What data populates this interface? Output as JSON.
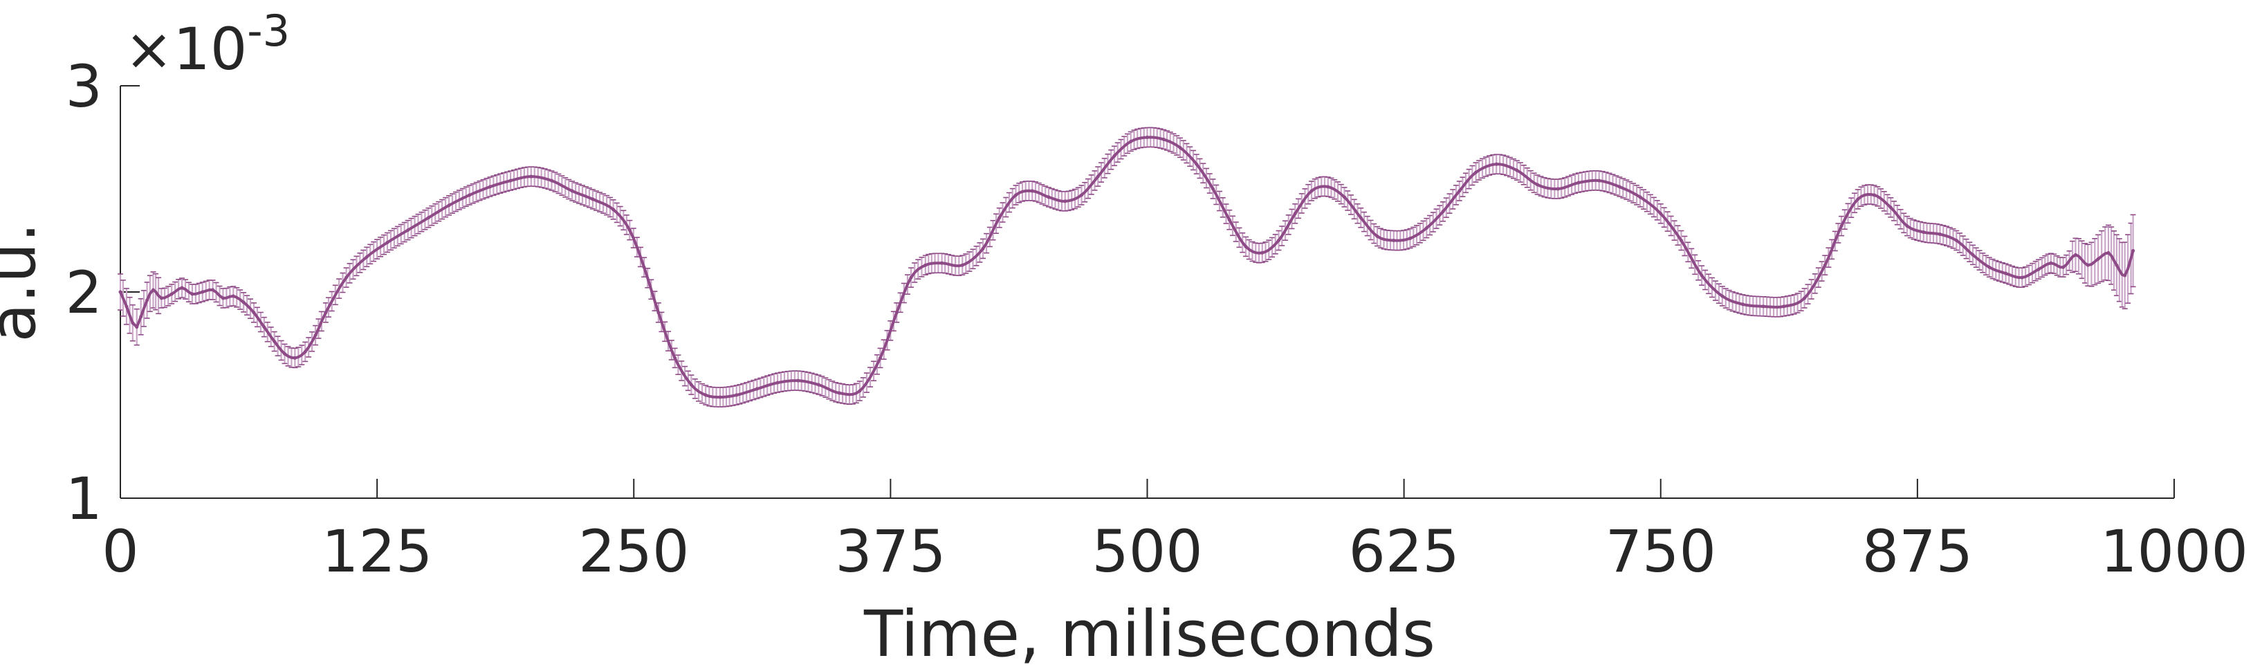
{
  "chart_data": {
    "type": "line",
    "xlabel": "Time, miliseconds",
    "ylabel": "a.u.",
    "y_exponent": "×10",
    "y_exponent_power": "-3",
    "xlim": [
      0,
      1000
    ],
    "ylim": [
      0.001,
      0.003
    ],
    "x_ticks": [
      0,
      125,
      250,
      375,
      500,
      625,
      750,
      875,
      1000
    ],
    "x_tick_labels": [
      "0",
      "125",
      "250",
      "375",
      "500",
      "625",
      "750",
      "875",
      "1000"
    ],
    "y_ticks": [
      0.001,
      0.002,
      0.003
    ],
    "y_tick_labels": [
      "1",
      "2",
      "3"
    ],
    "grid": false,
    "error_bars": true,
    "series_color": "#8e4a86",
    "band_color": "#c9a6c8",
    "series": [
      {
        "x": [
          0,
          3,
          6,
          8,
          10,
          13,
          16,
          20,
          25,
          30,
          35,
          40,
          45,
          50,
          55,
          60,
          65,
          70,
          75,
          80,
          85,
          90,
          95,
          100,
          110,
          120,
          130,
          140,
          150,
          160,
          170,
          180,
          190,
          200,
          210,
          220,
          230,
          240,
          248,
          255,
          262,
          270,
          278,
          285,
          292,
          300,
          310,
          320,
          330,
          340,
          350,
          360,
          370,
          378,
          385,
          392,
          400,
          410,
          420,
          428,
          436,
          444,
          452,
          460,
          468,
          476,
          484,
          492,
          500,
          508,
          516,
          524,
          532,
          540,
          548,
          556,
          564,
          572,
          580,
          588,
          596,
          604,
          612,
          620,
          628,
          636,
          644,
          652,
          660,
          670,
          680,
          690,
          700,
          710,
          720,
          730,
          740,
          750,
          760,
          770,
          780,
          790,
          800,
          810,
          820,
          830,
          838,
          846,
          854,
          862,
          870,
          878,
          886,
          894,
          902,
          910,
          918,
          926,
          934,
          940,
          946,
          952,
          958,
          963,
          968,
          972,
          976,
          980
        ],
        "y": [
          0.002,
          0.00193,
          0.00185,
          0.00183,
          0.00188,
          0.00196,
          0.00201,
          0.00197,
          0.00199,
          0.00202,
          0.00199,
          0.002,
          0.00201,
          0.00197,
          0.00198,
          0.00195,
          0.0019,
          0.00183,
          0.00176,
          0.0017,
          0.00168,
          0.00171,
          0.00179,
          0.0019,
          0.00207,
          0.00217,
          0.00224,
          0.0023,
          0.00236,
          0.00242,
          0.00247,
          0.00251,
          0.00254,
          0.00256,
          0.00254,
          0.00249,
          0.00245,
          0.0024,
          0.0023,
          0.00212,
          0.0019,
          0.00168,
          0.00155,
          0.0015,
          0.00149,
          0.0015,
          0.00153,
          0.00156,
          0.00157,
          0.00155,
          0.00151,
          0.00152,
          0.00168,
          0.0019,
          0.00207,
          0.00213,
          0.00214,
          0.00213,
          0.00221,
          0.00236,
          0.00247,
          0.00249,
          0.00246,
          0.00244,
          0.00247,
          0.00256,
          0.00266,
          0.00273,
          0.00275,
          0.00274,
          0.0027,
          0.00262,
          0.0025,
          0.00235,
          0.00222,
          0.00219,
          0.00225,
          0.00238,
          0.00249,
          0.00251,
          0.00246,
          0.00236,
          0.00227,
          0.00225,
          0.00226,
          0.00231,
          0.00239,
          0.00249,
          0.00258,
          0.00262,
          0.00259,
          0.00252,
          0.0025,
          0.00253,
          0.00254,
          0.00251,
          0.00246,
          0.00238,
          0.00225,
          0.00208,
          0.00198,
          0.00194,
          0.00193,
          0.00193,
          0.00197,
          0.00213,
          0.00232,
          0.00245,
          0.00247,
          0.00241,
          0.00232,
          0.00229,
          0.00228,
          0.00225,
          0.00218,
          0.00212,
          0.00209,
          0.00207,
          0.00211,
          0.00214,
          0.00212,
          0.00218,
          0.00213,
          0.00216,
          0.00219,
          0.00213,
          0.00208,
          0.0022
        ]
      }
    ]
  }
}
